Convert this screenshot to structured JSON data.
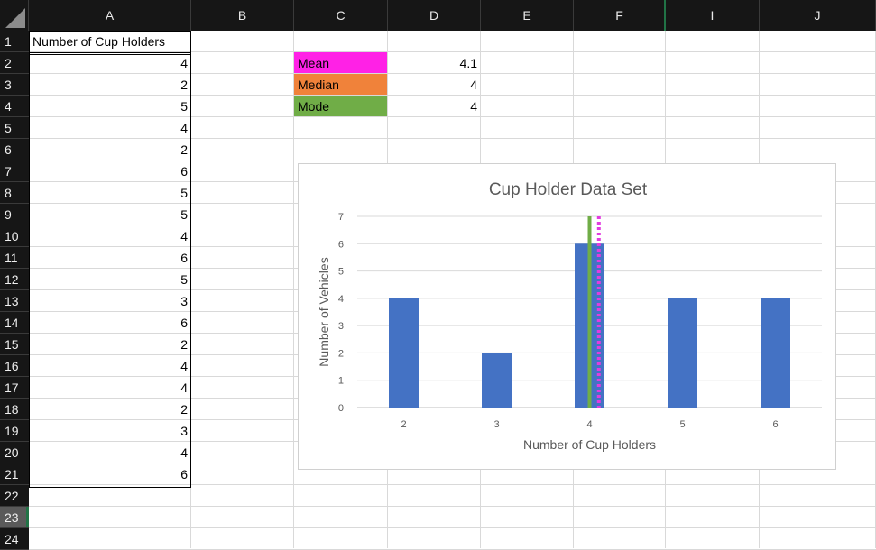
{
  "sheet": {
    "columns": [
      "A",
      "B",
      "C",
      "D",
      "E",
      "F",
      "I",
      "J"
    ],
    "rows": [
      "1",
      "2",
      "3",
      "4",
      "5",
      "6",
      "7",
      "8",
      "9",
      "10",
      "11",
      "12",
      "13",
      "14",
      "15",
      "16",
      "17",
      "18",
      "19",
      "20",
      "21",
      "22",
      "23",
      "24"
    ],
    "selected_row": "23",
    "col_a_header": "Number of Cup Holders",
    "col_a_values": [
      "4",
      "2",
      "5",
      "4",
      "2",
      "6",
      "5",
      "5",
      "4",
      "6",
      "5",
      "3",
      "6",
      "2",
      "4",
      "4",
      "2",
      "3",
      "4",
      "6"
    ],
    "stats": [
      {
        "label": "Mean",
        "value": "4.1",
        "color": "#ff21e6"
      },
      {
        "label": "Median",
        "value": "4",
        "color": "#f0823a"
      },
      {
        "label": "Mode",
        "value": "4",
        "color": "#70ad47"
      }
    ]
  },
  "chart_data": {
    "type": "bar",
    "title": "Cup Holder Data Set",
    "xlabel": "Number of Cup Holders",
    "ylabel": "Number of Vehicles",
    "categories": [
      "2",
      "3",
      "4",
      "5",
      "6"
    ],
    "values": [
      4,
      2,
      6,
      4,
      4
    ],
    "ylim": [
      0,
      7
    ],
    "yticks": [
      "0",
      "1",
      "2",
      "3",
      "4",
      "5",
      "6",
      "7"
    ],
    "bar_color": "#4472c4",
    "grid": true,
    "reference_lines": [
      {
        "name": "Mean",
        "x": 4.1,
        "color": "#e23ce0",
        "style": "dotted"
      },
      {
        "name": "Median",
        "x": 4,
        "color": "#f0823a",
        "style": "dashed"
      },
      {
        "name": "Mode",
        "x": 4,
        "color": "#70ad47",
        "style": "solid"
      }
    ]
  }
}
